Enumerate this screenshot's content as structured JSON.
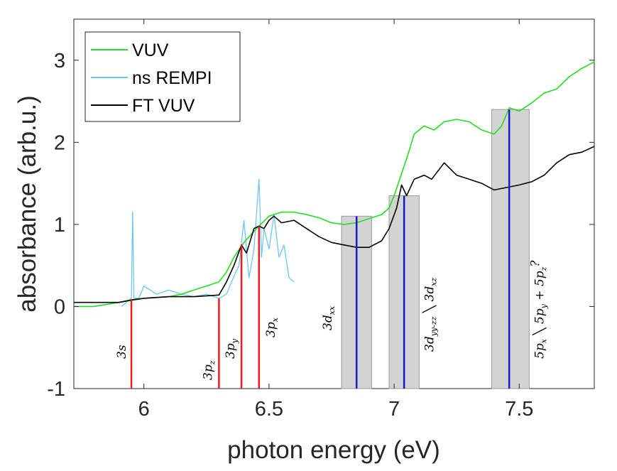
{
  "chart_data": {
    "type": "line",
    "title": "",
    "xlabel": "photon energy (eV)",
    "ylabel": "absorbance (arb.u.)",
    "xlim": [
      5.72,
      7.8
    ],
    "ylim": [
      -1,
      3.5
    ],
    "xticks": [
      6,
      6.5,
      7,
      7.5
    ],
    "xtick_labels": [
      "6",
      "6.5",
      "7",
      "7.5"
    ],
    "yticks": [
      -1,
      0,
      1,
      2,
      3
    ],
    "ytick_labels": [
      "-1",
      "0",
      "1",
      "2",
      "3"
    ],
    "grid": false,
    "legend_position": "top-left",
    "series": [
      {
        "name": "VUV",
        "color": "#22dd22",
        "x": [
          5.72,
          5.8,
          5.9,
          6.0,
          6.1,
          6.15,
          6.2,
          6.25,
          6.3,
          6.33,
          6.36,
          6.4,
          6.45,
          6.5,
          6.55,
          6.6,
          6.65,
          6.7,
          6.75,
          6.8,
          6.85,
          6.9,
          6.95,
          6.98,
          7.0,
          7.05,
          7.08,
          7.12,
          7.16,
          7.2,
          7.25,
          7.3,
          7.35,
          7.4,
          7.43,
          7.46,
          7.5,
          7.55,
          7.6,
          7.65,
          7.7,
          7.75,
          7.8
        ],
        "y": [
          0.0,
          0.0,
          0.05,
          0.1,
          0.12,
          0.15,
          0.2,
          0.25,
          0.3,
          0.42,
          0.6,
          0.78,
          0.95,
          1.1,
          1.15,
          1.15,
          1.12,
          1.08,
          1.02,
          1.0,
          1.02,
          1.07,
          1.12,
          1.2,
          1.35,
          1.8,
          2.1,
          2.2,
          2.15,
          2.25,
          2.28,
          2.25,
          2.15,
          2.1,
          2.2,
          2.42,
          2.38,
          2.48,
          2.6,
          2.65,
          2.8,
          2.9,
          2.98
        ]
      },
      {
        "name": "ns REMPI",
        "color": "#6ec6f0",
        "x": [
          5.91,
          5.93,
          5.95,
          5.955,
          5.96,
          5.98,
          6.0,
          6.05,
          6.1,
          6.15,
          6.2,
          6.25,
          6.3,
          6.33,
          6.35,
          6.38,
          6.4,
          6.42,
          6.44,
          6.46,
          6.47,
          6.48,
          6.5,
          6.52,
          6.54,
          6.56,
          6.58,
          6.6
        ],
        "y": [
          0.0,
          0.05,
          0.1,
          1.15,
          0.1,
          0.1,
          0.25,
          0.15,
          0.2,
          0.15,
          0.12,
          0.15,
          0.1,
          0.15,
          0.3,
          0.5,
          1.05,
          0.35,
          0.7,
          1.55,
          0.6,
          0.95,
          0.7,
          1.12,
          0.6,
          0.75,
          0.35,
          0.3
        ]
      },
      {
        "name": "FT VUV",
        "color": "#000000",
        "x": [
          5.72,
          5.8,
          5.9,
          5.95,
          6.0,
          6.1,
          6.2,
          6.3,
          6.33,
          6.36,
          6.39,
          6.41,
          6.44,
          6.46,
          6.48,
          6.5,
          6.52,
          6.55,
          6.6,
          6.65,
          6.7,
          6.75,
          6.8,
          6.85,
          6.9,
          6.95,
          6.98,
          7.01,
          7.03,
          7.05,
          7.08,
          7.12,
          7.15,
          7.2,
          7.25,
          7.3,
          7.35,
          7.4,
          7.45,
          7.5,
          7.55,
          7.6,
          7.65,
          7.7,
          7.75,
          7.8
        ],
        "y": [
          0.05,
          0.05,
          0.05,
          0.08,
          0.1,
          0.12,
          0.12,
          0.14,
          0.3,
          0.5,
          0.75,
          0.65,
          0.95,
          0.98,
          0.95,
          1.05,
          1.1,
          1.02,
          1.05,
          0.95,
          0.85,
          0.78,
          0.75,
          0.72,
          0.72,
          0.8,
          0.95,
          1.2,
          1.48,
          1.35,
          1.55,
          1.6,
          1.55,
          1.75,
          1.6,
          1.55,
          1.5,
          1.42,
          1.45,
          1.48,
          1.52,
          1.6,
          1.75,
          1.85,
          1.88,
          1.95
        ]
      }
    ],
    "legend": [
      "VUV",
      "ns REMPI",
      "FT VUV"
    ],
    "red_sticks": [
      {
        "x": 5.95,
        "y_top": 0.08,
        "label": "3s"
      },
      {
        "x": 6.3,
        "y_top": 0.1,
        "label": "3p",
        "sub": "z"
      },
      {
        "x": 6.39,
        "y_top": 0.75,
        "label": "3p",
        "sub": "y"
      },
      {
        "x": 6.46,
        "y_top": 0.98,
        "label": "3p",
        "sub": "x"
      }
    ],
    "blue_sticks": [
      {
        "x": 6.85,
        "y_top": 1.1,
        "band": [
          6.79,
          6.91
        ],
        "label": "3d",
        "sub": "xx"
      },
      {
        "x": 7.04,
        "y_top": 1.35,
        "band": [
          6.98,
          7.1
        ],
        "label": "3d",
        "sub": "yy-zz",
        "label2": "3d",
        "sub2": "xz"
      },
      {
        "x": 7.46,
        "y_top": 2.4,
        "band": [
          7.39,
          7.54
        ],
        "label": "5p",
        "sub": "x",
        "label2": "5p",
        "sub2": "y",
        "label3": "+ 5p",
        "sub3": "z",
        "sup3": "?"
      }
    ],
    "band_color": "#d3d3d3",
    "red_color": "#ee1c1c",
    "blue_color": "#1a1acc"
  }
}
